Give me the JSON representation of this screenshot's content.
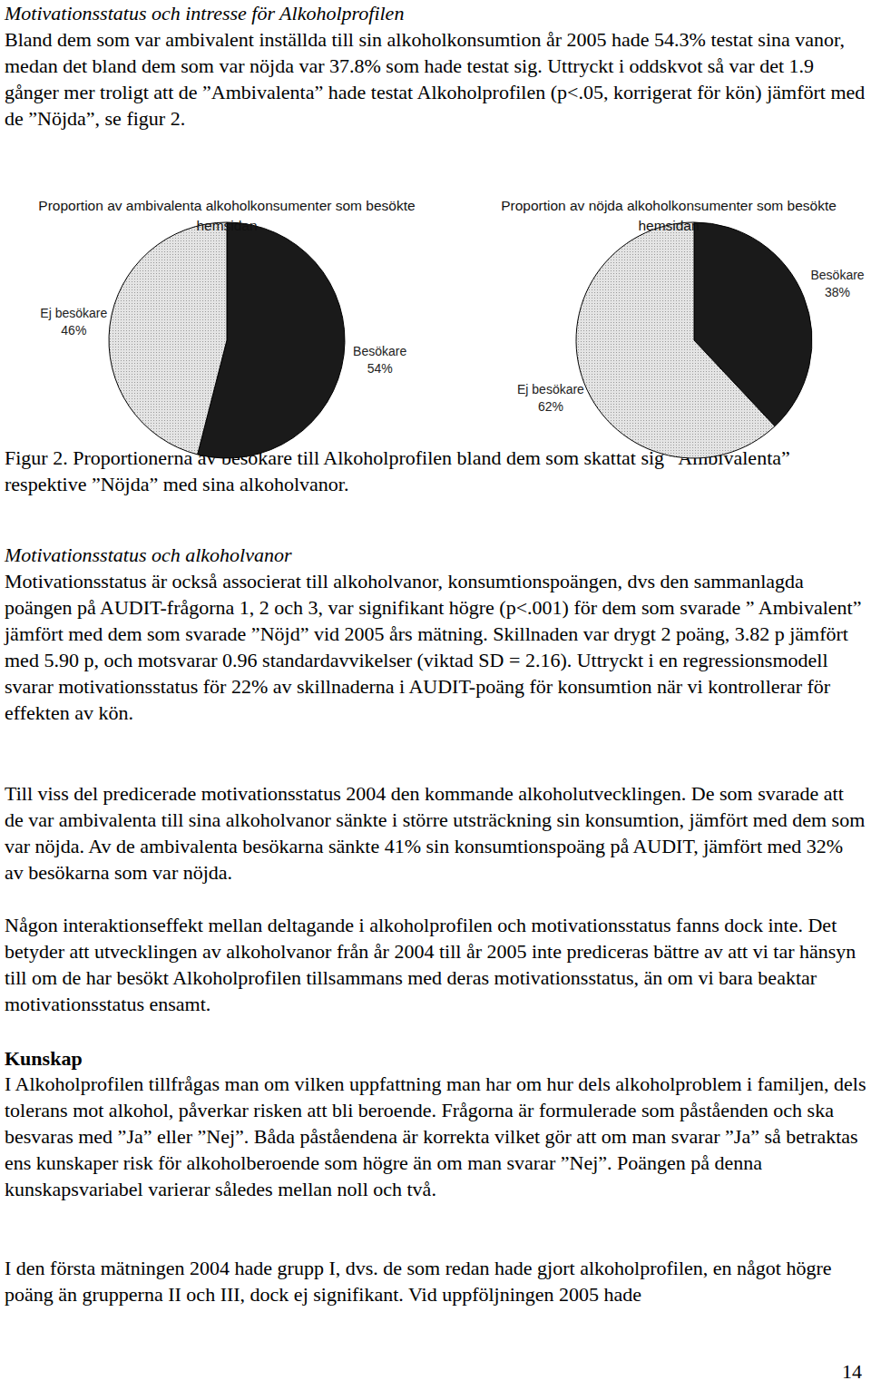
{
  "document": {
    "section_1": {
      "heading": "Motivationsstatus och intresse för Alkoholprofilen",
      "paragraphs": [
        "Bland dem som var ambivalent inställda till sin alkoholkonsumtion år 2005 hade 54.3% testat sina vanor, medan det bland dem som var nöjda var 37.8% som hade testat sig. Uttryckt i oddskvot så var det 1.9 gånger mer troligt att de ”Ambivalenta” hade testat Alkoholprofilen (p<.05, korrigerat för kön) jämfört med de ”Nöjda”, se figur 2."
      ]
    },
    "figure_caption": "Figur 2. Proportionerna av besökare till Alkoholprofilen bland dem som skattat sig ”Ambivalenta” respektive ”Nöjda” med sina alkoholvanor.",
    "section_2": {
      "heading": "Motivationsstatus och alkoholvanor",
      "paragraphs": [
        "Motivationsstatus är också associerat till alkoholvanor, konsumtionspoängen, dvs den sammanlagda poängen på AUDIT-frågorna 1, 2 och 3, var signifikant högre (p<.001) för dem som svarade ” Ambivalent” jämfört med dem som svarade ”Nöjd” vid 2005 års mätning. Skillnaden var drygt 2 poäng, 3.82 p jämfört med 5.90 p, och motsvarar 0.96 standardavvikelser (viktad SD = 2.16). Uttryckt i en regressionsmodell svarar motivationsstatus för 22% av skillnaderna i AUDIT-poäng för konsumtion när vi kontrollerar för effekten av kön.",
        "Till viss del predicerade motivationsstatus 2004 den kommande alkoholutvecklingen. De som svarade att de var ambivalenta till sina alkoholvanor sänkte i större utsträckning sin konsumtion, jämfört med dem som var nöjda. Av de ambivalenta besökarna sänkte 41% sin konsumtionspoäng på AUDIT, jämfört med 32% av besökarna som var nöjda.",
        "Någon interaktionseffekt mellan deltagande i alkoholprofilen och motivationsstatus fanns dock inte. Det betyder att utvecklingen av alkoholvanor från år 2004 till år 2005 inte prediceras bättre av att vi tar hänsyn till om de har besökt Alkoholprofilen tillsammans med deras motivationsstatus, än om vi bara beaktar motivationsstatus ensamt."
      ]
    },
    "section_3": {
      "heading": "Kunskap",
      "paragraphs": [
        "I Alkoholprofilen tillfrågas man om vilken uppfattning man har om hur dels alkoholproblem i familjen, dels tolerans mot alkohol, påverkar risken att bli beroende. Frågorna är formulerade som påståenden och ska besvaras med ”Ja” eller ”Nej”. Båda påståendena är korrekta vilket gör att om man svarar ”Ja” så betraktas ens kunskaper risk för alkoholberoende som högre än om man svarar ”Nej”. Poängen på denna kunskapsvariabel varierar således mellan noll och två.",
        "I den första mätningen 2004 hade grupp I, dvs. de som redan hade gjort alkoholprofilen, en något högre poäng än grupperna II och III, dock ej signifikant. Vid uppföljningen 2005 hade"
      ]
    },
    "page_number": "14"
  },
  "chart_data": [
    {
      "type": "pie",
      "title": "Proportion av ambivalenta alkoholkonsumenter som besökte hemsidan",
      "categories": [
        "Besökare",
        "Ej besökare"
      ],
      "values": [
        54,
        46
      ],
      "value_labels": [
        "54%",
        "46%"
      ],
      "colors": [
        "#1a1a1a",
        "#e4e4e4"
      ],
      "data_labels": true
    },
    {
      "type": "pie",
      "title": "Proportion av nöjda alkoholkonsumenter som besökte hemsidan",
      "categories": [
        "Besökare",
        "Ej besökare"
      ],
      "values": [
        38,
        62
      ],
      "value_labels": [
        "38%",
        "62%"
      ],
      "colors": [
        "#1a1a1a",
        "#e4e4e4"
      ],
      "data_labels": true
    }
  ]
}
